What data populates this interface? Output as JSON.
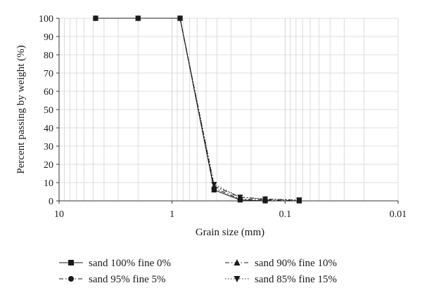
{
  "chart_data": {
    "type": "line",
    "xlabel": "Grain size (mm)",
    "ylabel": "Percent passing by weight (%)",
    "x_scale": "log",
    "x_reversed": true,
    "xlim": [
      10,
      0.01
    ],
    "ylim": [
      0,
      100
    ],
    "x_ticks": [
      10,
      1,
      0.1,
      0.01
    ],
    "x_tick_labels": [
      "10",
      "1",
      "0.1",
      "0.01"
    ],
    "y_ticks": [
      0,
      10,
      20,
      30,
      40,
      50,
      60,
      70,
      80,
      90,
      100
    ],
    "y_tick_labels": [
      "0",
      "10",
      "20",
      "30",
      "40",
      "50",
      "60",
      "70",
      "80",
      "90",
      "100"
    ],
    "grid": true,
    "legend_position": "bottom",
    "series": [
      {
        "name": "sand 100% fine 0%",
        "marker": "square",
        "dash": "solid",
        "x": [
          4.75,
          2.0,
          0.85,
          0.425,
          0.25,
          0.15,
          0.075
        ],
        "y": [
          100,
          100,
          100,
          6,
          0.5,
          0,
          0
        ]
      },
      {
        "name": "sand 95% fine 5%",
        "marker": "circle",
        "dash": "dashdot",
        "x": [
          4.75,
          2.0,
          0.85,
          0.425,
          0.25,
          0.15,
          0.075
        ],
        "y": [
          100,
          100,
          100,
          7,
          1,
          0.5,
          0
        ]
      },
      {
        "name": "sand 90% fine 10%",
        "marker": "triangle-up",
        "dash": "dashdot",
        "x": [
          4.75,
          2.0,
          0.85,
          0.425,
          0.25,
          0.15,
          0.075
        ],
        "y": [
          100,
          100,
          100,
          8,
          2,
          1,
          0.3
        ]
      },
      {
        "name": "sand 85% fine 15%",
        "marker": "triangle-down",
        "dash": "dotted",
        "x": [
          4.75,
          2.0,
          0.85,
          0.425,
          0.25,
          0.15,
          0.075
        ],
        "y": [
          100,
          100,
          100,
          9,
          2,
          1,
          0.5
        ]
      }
    ]
  },
  "colors": {
    "grid": "#d4d4d4",
    "axis": "#333333",
    "series": "#1a1a1a"
  }
}
